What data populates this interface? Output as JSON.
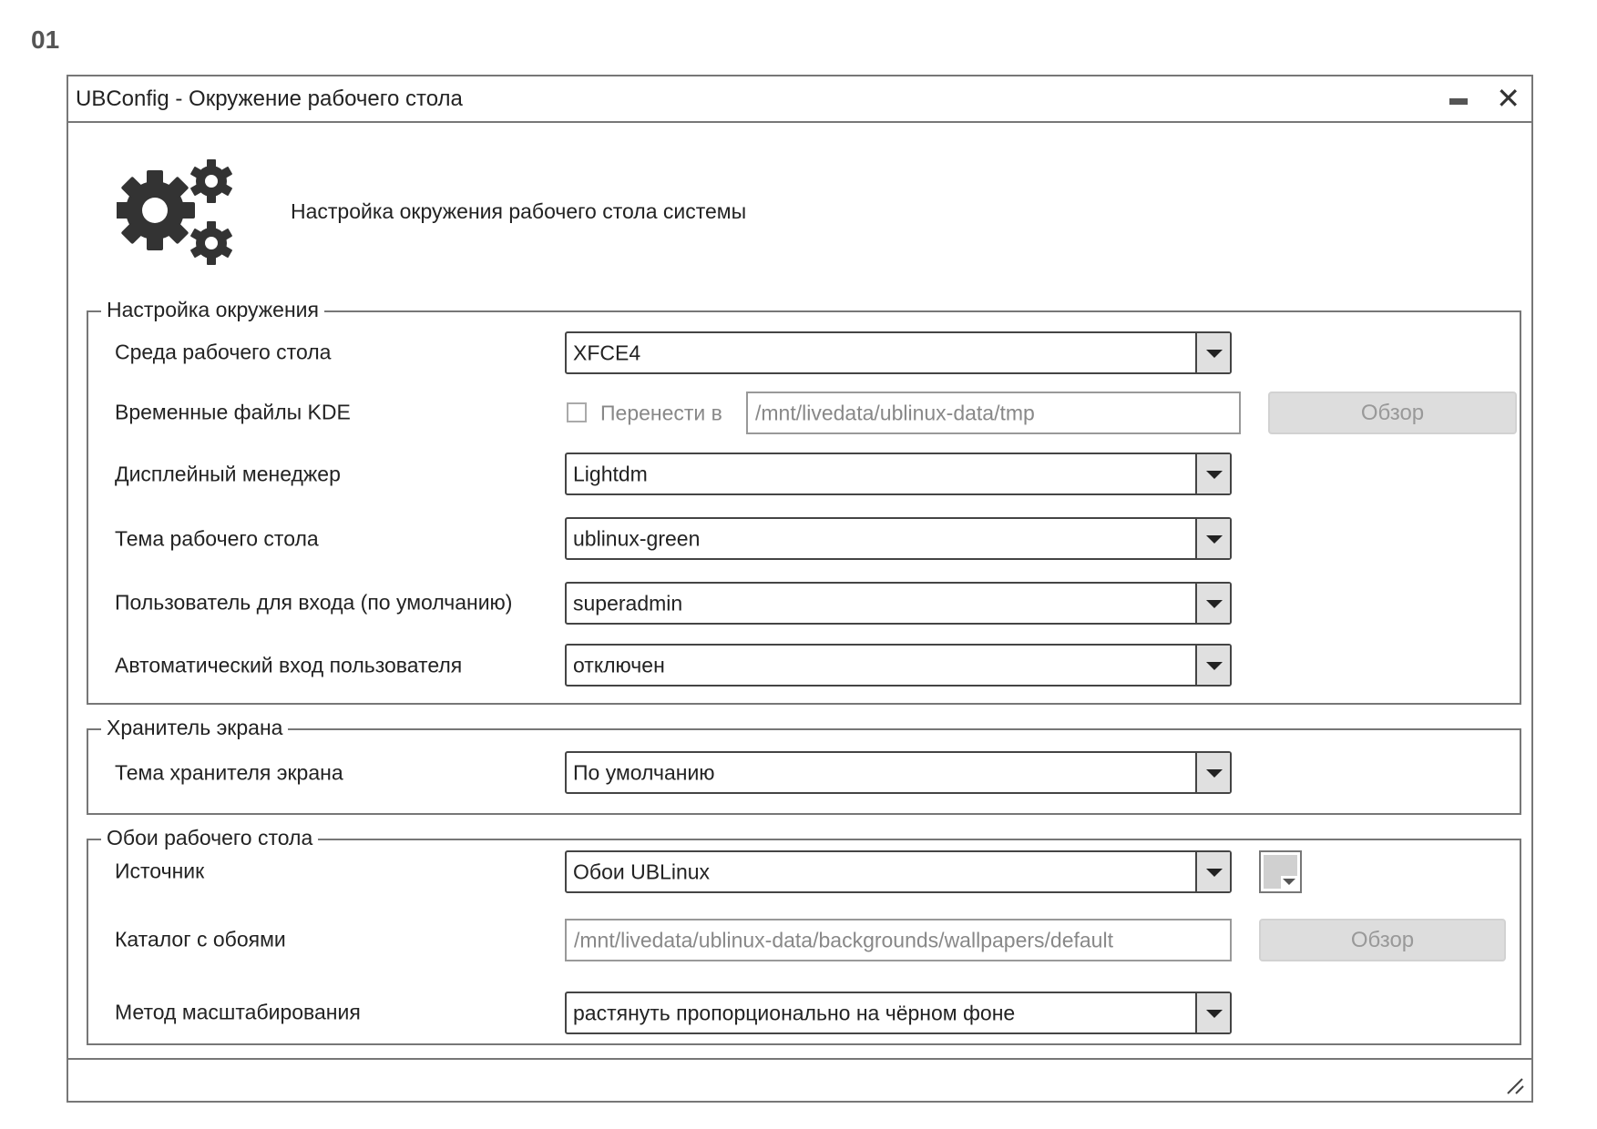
{
  "screen_number": "01",
  "window": {
    "title": "UBConfig - Окружение рабочего стола",
    "minimize_icon": "minimize-icon",
    "close_icon": "close-icon",
    "header_icon": "gears-icon",
    "subtitle": "Настройка окружения рабочего стола системы"
  },
  "environment": {
    "legend": "Настройка окружения",
    "desktop_env": {
      "label": "Среда рабочего стола",
      "value": "XFCE4"
    },
    "kde_temp": {
      "label": "Временные файлы KDE",
      "checkbox_label": "Перенести в",
      "checked": false,
      "path": "/mnt/livedata/ublinux-data/tmp",
      "browse": "Обзор"
    },
    "display_manager": {
      "label": "Дисплейный менеджер",
      "value": "Lightdm"
    },
    "theme": {
      "label": "Тема рабочего стола",
      "value": "ublinux-green"
    },
    "default_user": {
      "label": "Пользователь для входа (по умолчанию)",
      "value": "superadmin"
    },
    "autologin": {
      "label": "Автоматический вход пользователя",
      "value": "отключен"
    }
  },
  "screensaver": {
    "legend": "Хранитель экрана",
    "theme": {
      "label": "Тема хранителя экрана",
      "value": "По умолчанию"
    }
  },
  "wallpaper": {
    "legend": "Обои рабочего стола",
    "source": {
      "label": "Источник",
      "value": "Обои UBLinux"
    },
    "directory": {
      "label": "Каталог с обоями",
      "path": "/mnt/livedata/ublinux-data/backgrounds/wallpapers/default",
      "browse": "Обзор"
    },
    "scaling": {
      "label": "Метод масштабирования",
      "value": "растянуть пропорционально на чёрном фоне"
    },
    "color_swatch": "#d0d0d0"
  }
}
